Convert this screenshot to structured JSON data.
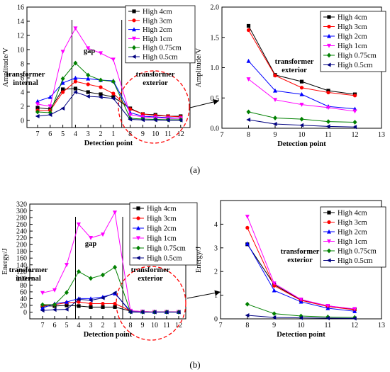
{
  "panel_labels": [
    "(a)",
    "(b)"
  ],
  "legend_labels": [
    "High 4cm",
    "High 3cm",
    "High 2cm",
    "High 1cm",
    "High 0.75cm",
    "High 0.5cm"
  ],
  "series_styles": [
    {
      "color": "#000000",
      "marker": "square"
    },
    {
      "color": "#ff0000",
      "marker": "circle"
    },
    {
      "color": "#0000ff",
      "marker": "triangle-up"
    },
    {
      "color": "#ff00ff",
      "marker": "triangle-down"
    },
    {
      "color": "#008000",
      "marker": "diamond"
    },
    {
      "color": "#000080",
      "marker": "triangle-left"
    }
  ],
  "highlight_color": "#ff0000",
  "chart_data": [
    {
      "id": "a-left",
      "type": "line",
      "xlabel": "Detection point",
      "ylabel": "Amplitude/V",
      "ylim": [
        -1,
        16
      ],
      "yticks": [
        0,
        2,
        4,
        6,
        8,
        10,
        12,
        14,
        16
      ],
      "categories": [
        "7",
        "6",
        "5",
        "4",
        "3",
        "2",
        "1",
        "8",
        "9",
        "10",
        "11",
        "12"
      ],
      "region_labels": [
        {
          "lines": [
            "transformer",
            "internal"
          ]
        },
        {
          "lines": [
            "gap"
          ]
        },
        {
          "lines": [
            "transformer",
            "exterior"
          ]
        }
      ],
      "series": [
        {
          "name": "High 4cm",
          "values": [
            1.8,
            1.6,
            4.4,
            4.5,
            4.0,
            3.7,
            3.3,
            1.7,
            0.9,
            0.8,
            0.6,
            0.6
          ]
        },
        {
          "name": "High 3cm",
          "values": [
            1.4,
            1.4,
            4.0,
            5.5,
            5.1,
            4.7,
            3.8,
            1.6,
            0.9,
            0.7,
            0.6,
            0.5
          ]
        },
        {
          "name": "High 2cm",
          "values": [
            2.7,
            3.3,
            5.3,
            6.0,
            5.9,
            5.7,
            5.6,
            1.1,
            0.6,
            0.5,
            0.4,
            0.3
          ]
        },
        {
          "name": "High 1cm",
          "values": [
            2.3,
            2.0,
            9.7,
            13.0,
            10.2,
            9.5,
            8.6,
            0.8,
            0.5,
            0.4,
            0.3,
            0.3
          ]
        },
        {
          "name": "High 0.75cm",
          "values": [
            1.2,
            1.1,
            5.9,
            8.1,
            6.4,
            5.7,
            5.5,
            0.3,
            0.2,
            0.15,
            0.1,
            0.1
          ]
        },
        {
          "name": "High 0.5cm",
          "values": [
            0.6,
            0.8,
            1.7,
            4.0,
            3.4,
            3.3,
            3.1,
            0.15,
            0.08,
            0.05,
            0.03,
            0.03
          ]
        }
      ]
    },
    {
      "id": "a-right",
      "type": "line",
      "xlabel": "Detection point",
      "ylabel": "Amplitude/V",
      "xlim": [
        7,
        13
      ],
      "xticks": [
        7,
        8,
        9,
        10,
        11,
        12,
        13
      ],
      "ylim": [
        0,
        2.0
      ],
      "yticks": [
        0.0,
        0.5,
        1.0,
        1.5,
        2.0
      ],
      "region_labels": [
        {
          "lines": [
            "transformer",
            "exterior"
          ]
        }
      ],
      "x": [
        8,
        9,
        10,
        11,
        12
      ],
      "series": [
        {
          "name": "High 4cm",
          "values": [
            1.69,
            0.88,
            0.77,
            0.62,
            0.56
          ]
        },
        {
          "name": "High 3cm",
          "values": [
            1.62,
            0.87,
            0.67,
            0.59,
            0.54
          ]
        },
        {
          "name": "High 2cm",
          "values": [
            1.11,
            0.62,
            0.56,
            0.36,
            0.32
          ]
        },
        {
          "name": "High 1cm",
          "values": [
            0.81,
            0.47,
            0.39,
            0.34,
            0.28
          ]
        },
        {
          "name": "High 0.75cm",
          "values": [
            0.27,
            0.17,
            0.15,
            0.11,
            0.1
          ]
        },
        {
          "name": "High 0.5cm",
          "values": [
            0.14,
            0.07,
            0.05,
            0.03,
            0.02
          ]
        }
      ]
    },
    {
      "id": "b-left",
      "type": "line",
      "xlabel": "Detection point",
      "ylabel": "Energy/J",
      "ylim": [
        -20,
        320
      ],
      "yticks": [
        0,
        20,
        40,
        60,
        80,
        100,
        120,
        140,
        160,
        180,
        200,
        220,
        240,
        260,
        280,
        300,
        320
      ],
      "categories": [
        "7",
        "6",
        "5",
        "4",
        "3",
        "2",
        "1",
        "8",
        "9",
        "10",
        "11",
        "12"
      ],
      "region_labels": [
        {
          "lines": [
            "transformer",
            "internal"
          ]
        },
        {
          "lines": [
            "gap"
          ]
        },
        {
          "lines": [
            "transformer",
            "exterior"
          ]
        }
      ],
      "series": [
        {
          "name": "High 4cm",
          "values": [
            18,
            18,
            20,
            18,
            15,
            15,
            15,
            3,
            1.5,
            0.8,
            0.6,
            0.3
          ]
        },
        {
          "name": "High 3cm",
          "values": [
            20,
            22,
            28,
            30,
            25,
            25,
            25,
            3.9,
            1.4,
            0.8,
            0.5,
            0.4
          ]
        },
        {
          "name": "High 2cm",
          "values": [
            12,
            25,
            30,
            40,
            40,
            45,
            55,
            3.2,
            1.2,
            0.7,
            0.4,
            0.3
          ]
        },
        {
          "name": "High 1cm",
          "values": [
            57,
            65,
            140,
            260,
            220,
            230,
            295,
            4.3,
            1.5,
            0.8,
            0.5,
            0.4
          ]
        },
        {
          "name": "High 0.75cm",
          "values": [
            22,
            22,
            58,
            120,
            100,
            110,
            133,
            0.6,
            0.2,
            0.1,
            0.07,
            0.05
          ]
        },
        {
          "name": "High 0.5cm",
          "values": [
            5,
            7,
            8,
            38,
            35,
            42,
            57,
            0.15,
            0.06,
            0.04,
            0.03,
            0.02
          ]
        }
      ]
    },
    {
      "id": "b-right",
      "type": "line",
      "xlabel": "Detection point",
      "ylabel": "Energy/J",
      "xlim": [
        7,
        13
      ],
      "xticks": [
        7,
        8,
        9,
        10,
        11,
        12,
        13
      ],
      "ylim": [
        0,
        5
      ],
      "yticks": [
        0,
        1,
        2,
        3,
        4
      ],
      "region_labels": [
        {
          "lines": [
            "transformer",
            "exterior"
          ]
        }
      ],
      "x": [
        8,
        9,
        10,
        11,
        12
      ],
      "series": [
        {
          "name": "High 4cm",
          "values": [
            3.15,
            1.45,
            0.8,
            0.55,
            0.4
          ]
        },
        {
          "name": "High 3cm",
          "values": [
            3.85,
            1.4,
            0.78,
            0.52,
            0.38
          ]
        },
        {
          "name": "High 2cm",
          "values": [
            3.18,
            1.2,
            0.72,
            0.45,
            0.32
          ]
        },
        {
          "name": "High 1cm",
          "values": [
            4.32,
            1.5,
            0.82,
            0.55,
            0.42
          ]
        },
        {
          "name": "High 0.75cm",
          "values": [
            0.62,
            0.22,
            0.12,
            0.08,
            0.06
          ]
        },
        {
          "name": "High 0.5cm",
          "values": [
            0.15,
            0.06,
            0.04,
            0.03,
            0.02
          ]
        }
      ]
    }
  ]
}
